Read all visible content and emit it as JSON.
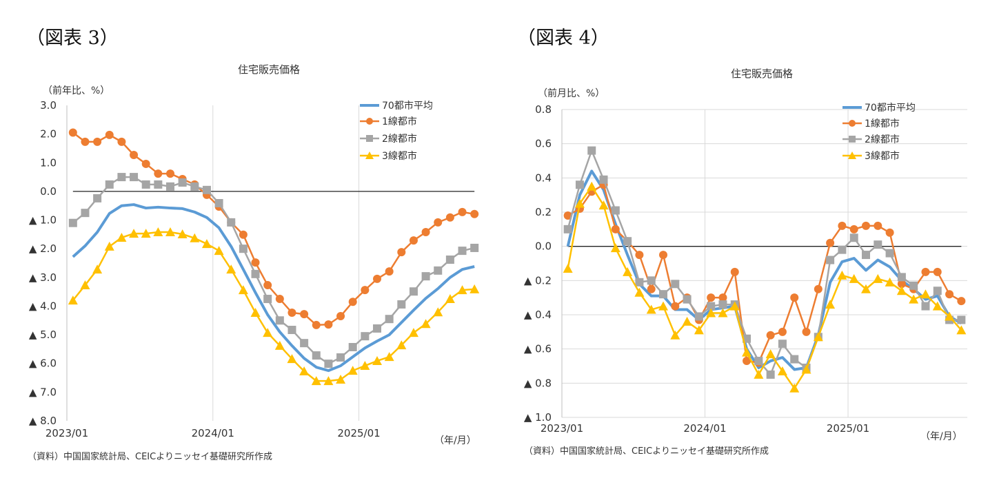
{
  "figures": [
    {
      "label": "（図表 3）"
    },
    {
      "label": "（図表 4）"
    }
  ],
  "colors": {
    "70": "#5b9bd5",
    "1": "#ed7d31",
    "2": "#a5a5a5",
    "3": "#ffc000"
  },
  "chart_data": [
    {
      "type": "line",
      "title": "住宅販売価格",
      "ylabel": "（前年比、%）",
      "xlabel": "（年/月）",
      "source": "（資料）中国国家統計局、CEICよりニッセイ基礎研究所作成",
      "x_start": "2023/01",
      "x_end": "2025/10",
      "x_tick_labels": [
        "2023/01",
        "2024/01",
        "2025/01"
      ],
      "ylim": [
        -8,
        3
      ],
      "y_ticks": [
        3,
        2,
        1,
        0,
        -1,
        -2,
        -3,
        -4,
        -5,
        -6,
        -7,
        -8
      ],
      "y_tick_labels": [
        "3.0",
        "2.0",
        "1.0",
        "0.0",
        "▲ 1.0",
        "▲ 2.0",
        "▲ 3.0",
        "▲ 4.0",
        "▲ 5.0",
        "▲ 6.0",
        "▲ 7.0",
        "▲ 8.0"
      ],
      "grid": "vertical",
      "legend": "top-right",
      "series": [
        {
          "name": "70都市平均",
          "color": "#5b9bd5",
          "marker": "none",
          "values": [
            -2.28,
            -1.9,
            -1.42,
            -0.77,
            -0.5,
            -0.46,
            -0.58,
            -0.55,
            -0.58,
            -0.6,
            -0.72,
            -0.91,
            -1.27,
            -1.92,
            -2.72,
            -3.53,
            -4.3,
            -4.9,
            -5.38,
            -5.82,
            -6.13,
            -6.25,
            -6.08,
            -5.77,
            -5.46,
            -5.22,
            -5.0,
            -4.57,
            -4.14,
            -3.73,
            -3.39,
            -3.0,
            -2.72,
            -2.62
          ]
        },
        {
          "name": "1線都市",
          "color": "#ed7d31",
          "marker": "circle",
          "values": [
            2.05,
            1.73,
            1.73,
            1.97,
            1.73,
            1.27,
            0.96,
            0.62,
            0.62,
            0.43,
            0.24,
            -0.12,
            -0.53,
            -1.08,
            -1.51,
            -2.48,
            -3.27,
            -3.75,
            -4.23,
            -4.28,
            -4.66,
            -4.64,
            -4.35,
            -3.85,
            -3.44,
            -3.05,
            -2.79,
            -2.12,
            -1.71,
            -1.42,
            -1.08,
            -0.91,
            -0.72,
            -0.79
          ]
        },
        {
          "name": "2線都市",
          "color": "#a5a5a5",
          "marker": "square",
          "values": [
            -1.1,
            -0.75,
            -0.24,
            0.24,
            0.5,
            0.5,
            0.24,
            0.24,
            0.17,
            0.31,
            0.17,
            0.05,
            -0.41,
            -1.08,
            -2.0,
            -2.88,
            -3.75,
            -4.5,
            -4.83,
            -5.29,
            -5.72,
            -6.01,
            -5.79,
            -5.43,
            -5.05,
            -4.78,
            -4.45,
            -3.94,
            -3.49,
            -2.96,
            -2.76,
            -2.38,
            -2.07,
            -1.97
          ]
        },
        {
          "name": "3線都市",
          "color": "#ffc000",
          "marker": "triangle",
          "values": [
            -3.8,
            -3.27,
            -2.72,
            -1.92,
            -1.61,
            -1.47,
            -1.47,
            -1.42,
            -1.42,
            -1.49,
            -1.63,
            -1.83,
            -2.07,
            -2.72,
            -3.44,
            -4.23,
            -4.93,
            -5.38,
            -5.84,
            -6.27,
            -6.61,
            -6.61,
            -6.56,
            -6.25,
            -6.08,
            -5.91,
            -5.77,
            -5.36,
            -4.93,
            -4.62,
            -4.21,
            -3.75,
            -3.44,
            -3.41
          ]
        }
      ]
    },
    {
      "type": "line",
      "title": "住宅販売価格",
      "ylabel": "（前月比、%）",
      "xlabel": "（年/月）",
      "source": "（資料）中国国家統計局、CEICよりニッセイ基礎研究所作成",
      "x_start": "2023/01",
      "x_end": "2025/10",
      "x_tick_labels": [
        "2023/01",
        "2024/01",
        "2025/01"
      ],
      "ylim": [
        -1.0,
        0.8
      ],
      "y_ticks": [
        0.8,
        0.6,
        0.4,
        0.2,
        0,
        -0.2,
        -0.4,
        -0.6,
        -0.8,
        -1.0
      ],
      "y_tick_labels": [
        "0.8",
        "0.6",
        "0.4",
        "0.2",
        "0.0",
        "▲ 0.2",
        "▲ 0.4",
        "▲ 0.6",
        "▲ 0.8",
        "▲ 1.0"
      ],
      "grid": "both",
      "legend": "top-right",
      "series": [
        {
          "name": "70都市平均",
          "color": "#5b9bd5",
          "marker": "none",
          "values": [
            0.0,
            0.3,
            0.44,
            0.33,
            0.13,
            -0.05,
            -0.22,
            -0.29,
            -0.29,
            -0.37,
            -0.37,
            -0.43,
            -0.37,
            -0.36,
            -0.35,
            -0.6,
            -0.71,
            -0.67,
            -0.65,
            -0.72,
            -0.71,
            -0.52,
            -0.21,
            -0.09,
            -0.07,
            -0.14,
            -0.08,
            -0.12,
            -0.2,
            -0.25,
            -0.31,
            -0.29,
            -0.41,
            -0.45
          ]
        },
        {
          "name": "1線都市",
          "color": "#ed7d31",
          "marker": "circle",
          "values": [
            0.18,
            0.22,
            0.32,
            0.36,
            0.1,
            0.03,
            -0.05,
            -0.25,
            -0.05,
            -0.35,
            -0.3,
            -0.43,
            -0.3,
            -0.3,
            -0.15,
            -0.67,
            -0.68,
            -0.52,
            -0.5,
            -0.3,
            -0.5,
            -0.25,
            0.02,
            0.12,
            0.1,
            0.12,
            0.12,
            0.08,
            -0.22,
            -0.25,
            -0.15,
            -0.15,
            -0.28,
            -0.32
          ]
        },
        {
          "name": "2線都市",
          "color": "#a5a5a5",
          "marker": "square",
          "values": [
            0.1,
            0.36,
            0.56,
            0.39,
            0.21,
            0.03,
            -0.21,
            -0.2,
            -0.28,
            -0.22,
            -0.31,
            -0.41,
            -0.35,
            -0.34,
            -0.34,
            -0.54,
            -0.67,
            -0.75,
            -0.57,
            -0.66,
            -0.71,
            -0.53,
            -0.08,
            -0.02,
            0.05,
            -0.05,
            0.01,
            -0.04,
            -0.18,
            -0.23,
            -0.35,
            -0.26,
            -0.43,
            -0.43
          ]
        },
        {
          "name": "3線都市",
          "color": "#ffc000",
          "marker": "triangle",
          "values": [
            -0.13,
            0.25,
            0.35,
            0.24,
            -0.01,
            -0.15,
            -0.27,
            -0.37,
            -0.35,
            -0.52,
            -0.44,
            -0.49,
            -0.39,
            -0.39,
            -0.35,
            -0.62,
            -0.75,
            -0.63,
            -0.73,
            -0.83,
            -0.72,
            -0.53,
            -0.34,
            -0.17,
            -0.19,
            -0.25,
            -0.19,
            -0.21,
            -0.26,
            -0.31,
            -0.28,
            -0.35,
            -0.41,
            -0.49
          ]
        }
      ]
    }
  ]
}
